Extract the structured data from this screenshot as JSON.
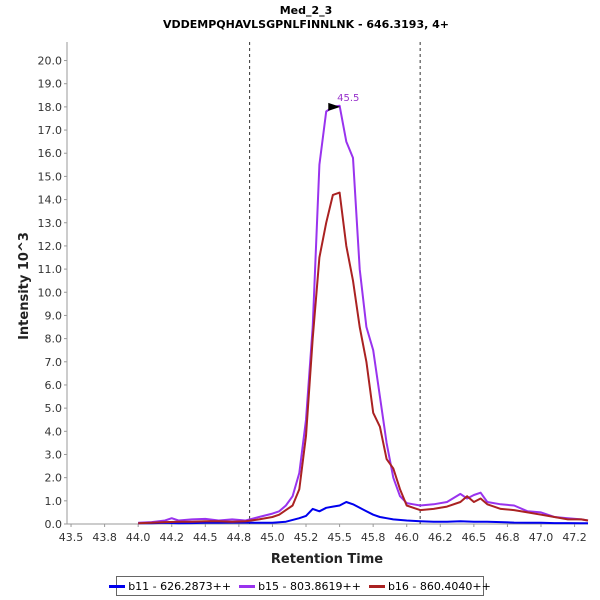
{
  "chart_data": {
    "type": "line",
    "title": "Med_2_3",
    "subtitle": "VDDEMPQHAVLSGPNLFINNLNK - 646.3193, 4+",
    "xlabel": "Retention Time",
    "ylabel": "Intensity 10^3",
    "xlim": [
      43.47,
      47.35
    ],
    "ylim": [
      0,
      20.8
    ],
    "xticks": [
      "43.5",
      "43.8",
      "44.0",
      "44.2",
      "44.5",
      "44.8",
      "45.0",
      "45.2",
      "45.5",
      "45.8",
      "46.0",
      "46.2",
      "46.5",
      "46.8",
      "47.0",
      "47.2"
    ],
    "yticks": [
      "0.0",
      "1.0",
      "2.0",
      "3.0",
      "4.0",
      "5.0",
      "6.0",
      "7.0",
      "8.0",
      "9.0",
      "10.0",
      "11.0",
      "12.0",
      "13.0",
      "14.0",
      "15.0",
      "16.0",
      "17.0",
      "18.0",
      "19.0",
      "20.0"
    ],
    "boundaries": [
      44.83,
      46.1
    ],
    "peak_marker": {
      "x": 45.52,
      "y": 18.0,
      "label": "45.5",
      "color": "#9933cc"
    },
    "series": [
      {
        "name": "b11 - 626.2873++",
        "color": "#0000ee",
        "x": [
          44.0,
          44.1,
          44.2,
          44.3,
          44.4,
          44.5,
          44.6,
          44.7,
          44.8,
          44.9,
          45.0,
          45.1,
          45.2,
          45.25,
          45.3,
          45.35,
          45.4,
          45.45,
          45.5,
          45.55,
          45.6,
          45.65,
          45.7,
          45.75,
          45.8,
          45.85,
          45.9,
          46.0,
          46.1,
          46.2,
          46.3,
          46.4,
          46.5,
          46.6,
          46.7,
          46.8,
          46.9,
          47.0,
          47.1,
          47.2,
          47.3,
          47.35
        ],
        "values": [
          0.03,
          0.03,
          0.05,
          0.03,
          0.04,
          0.05,
          0.05,
          0.06,
          0.06,
          0.05,
          0.05,
          0.1,
          0.25,
          0.35,
          0.65,
          0.55,
          0.7,
          0.75,
          0.8,
          0.95,
          0.85,
          0.7,
          0.55,
          0.4,
          0.3,
          0.25,
          0.2,
          0.15,
          0.12,
          0.1,
          0.1,
          0.12,
          0.1,
          0.1,
          0.08,
          0.06,
          0.05,
          0.05,
          0.04,
          0.04,
          0.03,
          0.03
        ]
      },
      {
        "name": "b15 - 803.8619++",
        "color": "#9933ee",
        "x": [
          44.0,
          44.1,
          44.2,
          44.25,
          44.3,
          44.4,
          44.5,
          44.6,
          44.7,
          44.8,
          44.9,
          45.0,
          45.05,
          45.1,
          45.15,
          45.2,
          45.25,
          45.3,
          45.35,
          45.4,
          45.45,
          45.5,
          45.55,
          45.6,
          45.65,
          45.7,
          45.75,
          45.8,
          45.85,
          45.9,
          45.95,
          46.0,
          46.05,
          46.1,
          46.2,
          46.3,
          46.4,
          46.45,
          46.5,
          46.55,
          46.6,
          46.7,
          46.8,
          46.9,
          47.0,
          47.1,
          47.2,
          47.3,
          47.35
        ],
        "values": [
          0.05,
          0.08,
          0.15,
          0.25,
          0.15,
          0.2,
          0.22,
          0.15,
          0.2,
          0.15,
          0.3,
          0.45,
          0.55,
          0.8,
          1.2,
          2.2,
          4.5,
          8.5,
          15.5,
          17.8,
          18.0,
          18.05,
          16.5,
          15.8,
          11.0,
          8.5,
          7.5,
          5.5,
          3.5,
          2.0,
          1.2,
          0.9,
          0.85,
          0.8,
          0.85,
          0.95,
          1.3,
          1.1,
          1.25,
          1.35,
          0.95,
          0.85,
          0.8,
          0.55,
          0.5,
          0.3,
          0.25,
          0.2,
          0.15
        ]
      },
      {
        "name": "b16 - 860.4040++",
        "color": "#aa2222",
        "x": [
          44.0,
          44.1,
          44.2,
          44.3,
          44.4,
          44.5,
          44.6,
          44.7,
          44.8,
          44.9,
          45.0,
          45.05,
          45.1,
          45.15,
          45.2,
          45.25,
          45.3,
          45.35,
          45.4,
          45.45,
          45.5,
          45.55,
          45.6,
          45.65,
          45.7,
          45.75,
          45.8,
          45.85,
          45.9,
          45.95,
          46.0,
          46.05,
          46.1,
          46.2,
          46.3,
          46.4,
          46.45,
          46.5,
          46.55,
          46.6,
          46.7,
          46.8,
          46.9,
          47.0,
          47.1,
          47.2,
          47.3,
          47.35
        ],
        "values": [
          0.03,
          0.05,
          0.08,
          0.1,
          0.1,
          0.12,
          0.12,
          0.1,
          0.12,
          0.2,
          0.3,
          0.4,
          0.6,
          0.8,
          1.5,
          3.8,
          8.0,
          11.5,
          13.0,
          14.2,
          14.3,
          12.0,
          10.5,
          8.5,
          7.0,
          4.8,
          4.2,
          2.8,
          2.4,
          1.5,
          0.8,
          0.7,
          0.6,
          0.65,
          0.75,
          0.95,
          1.2,
          0.95,
          1.1,
          0.85,
          0.65,
          0.6,
          0.5,
          0.4,
          0.3,
          0.2,
          0.2,
          0.15
        ]
      }
    ]
  }
}
